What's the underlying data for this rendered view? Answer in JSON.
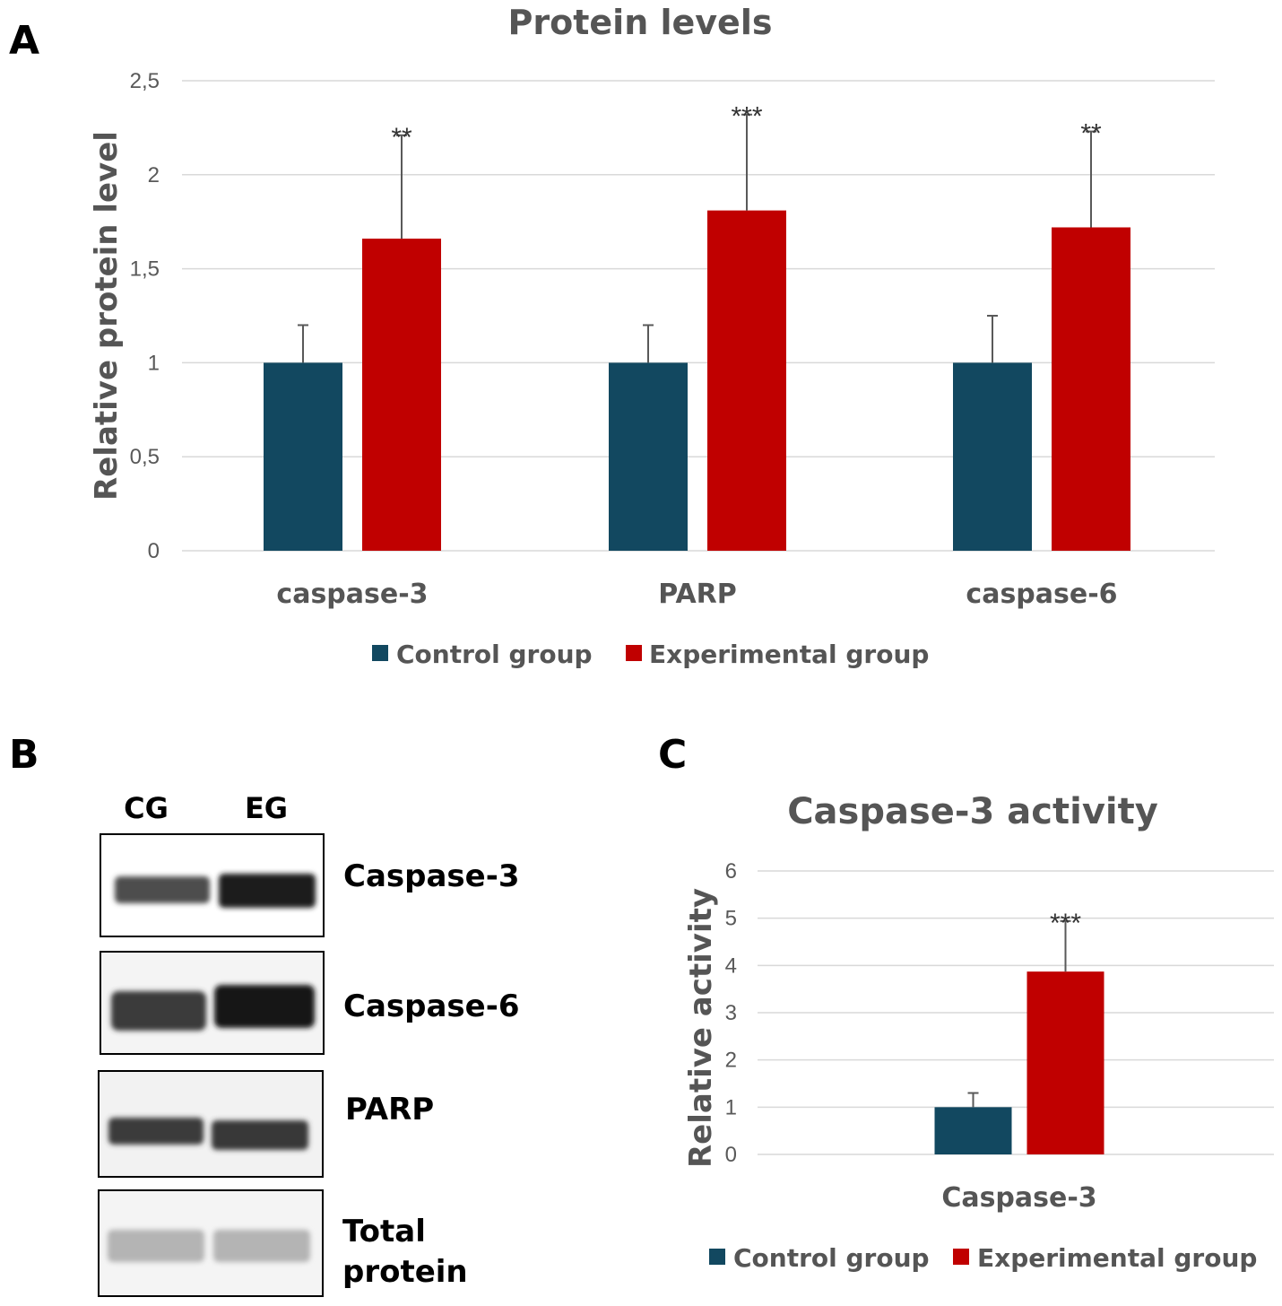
{
  "panels": {
    "a_letter": "A",
    "b_letter": "B",
    "c_letter": "C"
  },
  "colors": {
    "control": "#124860",
    "experimental": "#c00000",
    "text": "#555555",
    "grid": "#d9d9d9"
  },
  "chart_data": [
    {
      "id": "A",
      "type": "bar",
      "title": "Protein levels",
      "ylabel": "Relative protein level",
      "xlabel": "",
      "ylim": [
        0,
        2.5
      ],
      "yticks": [
        0,
        0.5,
        1,
        1.5,
        2,
        2.5
      ],
      "ytick_labels": [
        "0",
        "0,5",
        "1",
        "1,5",
        "2",
        "2,5"
      ],
      "categories": [
        "caspase-3",
        "PARP",
        "caspase-6"
      ],
      "series": [
        {
          "name": "Control group",
          "values": [
            1.0,
            1.0,
            1.0
          ],
          "errors": [
            0.2,
            0.2,
            0.25
          ]
        },
        {
          "name": "Experimental group",
          "values": [
            1.66,
            1.81,
            1.72
          ],
          "errors": [
            0.55,
            0.51,
            0.51
          ]
        }
      ],
      "significance": [
        "**",
        "***",
        "**"
      ],
      "legend": "bottom",
      "grid": true
    },
    {
      "id": "C",
      "type": "bar",
      "title": "Caspase-3 activity",
      "ylabel": "Relative activity",
      "xlabel": "",
      "ylim": [
        0,
        6
      ],
      "yticks": [
        0,
        1,
        2,
        3,
        4,
        5,
        6
      ],
      "ytick_labels": [
        "0",
        "1",
        "2",
        "3",
        "4",
        "5",
        "6"
      ],
      "categories": [
        "Caspase-3"
      ],
      "series": [
        {
          "name": "Control group",
          "values": [
            1.0
          ],
          "errors": [
            0.3
          ]
        },
        {
          "name": "Experimental group",
          "values": [
            3.87
          ],
          "errors": [
            1.07
          ]
        }
      ],
      "significance": [
        "***"
      ],
      "legend": "bottom",
      "grid": true
    }
  ],
  "blot": {
    "lanes": [
      "CG",
      "EG"
    ],
    "rows": [
      {
        "label": "Caspase-3",
        "cg_intensity": 0.72,
        "eg_intensity": 0.95
      },
      {
        "label": "Caspase-6",
        "cg_intensity": 0.8,
        "eg_intensity": 0.97
      },
      {
        "label": "PARP",
        "cg_intensity": 0.8,
        "eg_intensity": 0.82
      },
      {
        "label_lines": [
          "Total",
          "protein"
        ],
        "cg_intensity": 0.25,
        "eg_intensity": 0.25
      }
    ]
  }
}
